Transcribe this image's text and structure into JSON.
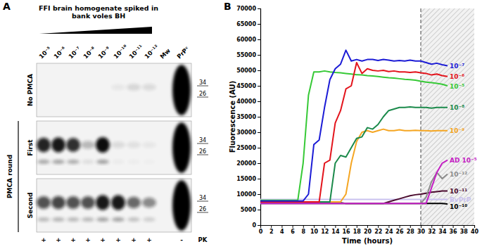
{
  "blot": {
    "panel": "A",
    "title_lines": [
      "FFI brain homogenate spiked in",
      "bank voles BH"
    ],
    "lanes": [
      "10⁻⁵",
      "10⁻⁶",
      "10⁻⁷",
      "10⁻⁸",
      "10⁻⁹",
      "10⁻¹⁰",
      "10⁻¹¹",
      "10⁻¹²",
      "Mw",
      "PrPᶜ"
    ],
    "rows": [
      "No PMCA",
      "First",
      "Second"
    ],
    "row_group": "PMCA round",
    "markers": [
      34,
      26
    ],
    "pk": [
      "+",
      "+",
      "+",
      "+",
      "+",
      "+",
      "+",
      "+",
      null,
      "-"
    ],
    "pk_label": "PK"
  },
  "chart_data": {
    "type": "line",
    "panel": "B",
    "xlabel": "Time (hours)",
    "ylabel": "Fluorescence (AU)",
    "xlim": [
      0,
      40
    ],
    "xticks": [
      0,
      2,
      4,
      6,
      8,
      10,
      12,
      14,
      16,
      18,
      20,
      22,
      24,
      26,
      28,
      30,
      32,
      34,
      36,
      38,
      40
    ],
    "ylim": [
      0,
      70000
    ],
    "yticks": [
      0,
      5000,
      10000,
      15000,
      20000,
      25000,
      30000,
      35000,
      40000,
      45000,
      50000,
      55000,
      60000,
      65000,
      70000
    ],
    "shaded_x": [
      30,
      40
    ],
    "x": [
      0,
      1,
      2,
      3,
      4,
      5,
      6,
      7,
      8,
      9,
      10,
      11,
      12,
      13,
      14,
      15,
      16,
      17,
      18,
      19,
      20,
      21,
      22,
      23,
      24,
      25,
      26,
      27,
      28,
      29,
      30,
      31,
      32,
      33,
      34,
      35
    ],
    "series": [
      {
        "name": "10⁻⁷",
        "color": "#1c1cd6",
        "values": [
          7800,
          7800,
          7800,
          7800,
          7800,
          7800,
          7800,
          7800,
          7800,
          10000,
          26000,
          27500,
          38000,
          47000,
          50500,
          52000,
          56500,
          53000,
          53500,
          53000,
          53500,
          53500,
          53200,
          53500,
          53300,
          53000,
          53200,
          53000,
          53300,
          53000,
          53000,
          52500,
          52000,
          52300,
          51800,
          51500
        ]
      },
      {
        "name": "10⁻⁶",
        "color": "#e3141c",
        "values": [
          7500,
          7500,
          7500,
          7500,
          7500,
          7500,
          7500,
          7500,
          7500,
          7500,
          7500,
          7500,
          20000,
          21000,
          33000,
          37000,
          44000,
          45000,
          52500,
          49000,
          50500,
          50000,
          49800,
          50000,
          49600,
          49800,
          49500,
          49500,
          49300,
          49500,
          49200,
          49000,
          48500,
          48800,
          48300,
          48000
        ]
      },
      {
        "name": "10⁻⁵",
        "color": "#36c936",
        "values": [
          8000,
          8000,
          8000,
          8000,
          8000,
          8000,
          8000,
          8000,
          20000,
          42000,
          49500,
          49500,
          49800,
          49500,
          49300,
          49200,
          49000,
          48800,
          48600,
          48500,
          48300,
          48200,
          48000,
          47800,
          47600,
          47500,
          47300,
          47100,
          47000,
          46800,
          46500,
          46200,
          46000,
          45800,
          45500,
          45000
        ]
      },
      {
        "name": "10⁻⁸",
        "color": "#1b8a4b",
        "values": [
          7500,
          7500,
          7500,
          7500,
          7500,
          7500,
          7500,
          7500,
          7500,
          7500,
          7500,
          7500,
          7500,
          7500,
          20000,
          22500,
          22000,
          25000,
          28000,
          28500,
          31500,
          31000,
          32500,
          35000,
          37000,
          37500,
          38000,
          38000,
          38200,
          38000,
          38000,
          38000,
          37800,
          38000,
          38000,
          38000
        ]
      },
      {
        "name": "10⁻⁹",
        "color": "#f5a623",
        "values": [
          7500,
          7500,
          7500,
          7500,
          7500,
          7500,
          7500,
          7500,
          7500,
          7500,
          7500,
          7500,
          7500,
          7500,
          7500,
          7500,
          10000,
          20000,
          27000,
          30000,
          30500,
          30000,
          30500,
          31000,
          30500,
          30500,
          30800,
          30500,
          30500,
          30600,
          30500,
          30500,
          30400,
          30500,
          30500,
          30500
        ]
      },
      {
        "name": "AD 10⁻⁵",
        "color": "#c41fc4",
        "values": [
          7000,
          7000,
          7000,
          7000,
          7000,
          7000,
          7000,
          7000,
          7000,
          7000,
          7000,
          7000,
          7000,
          7000,
          7000,
          7000,
          7000,
          7000,
          7000,
          7000,
          7000,
          7000,
          7000,
          7000,
          7000,
          7000,
          7000,
          7000,
          7000,
          7000,
          7000,
          7000,
          12000,
          17000,
          20000,
          21000
        ]
      },
      {
        "name": "10⁻¹²",
        "color": "#8c8c8c",
        "values": [
          7000,
          7000,
          7000,
          7000,
          7000,
          7000,
          7000,
          7000,
          7000,
          7000,
          7000,
          7000,
          7000,
          7000,
          7000,
          7000,
          7000,
          7000,
          7000,
          7000,
          7000,
          7000,
          7000,
          7000,
          7000,
          7000,
          7000,
          7000,
          7000,
          7000,
          7000,
          9000,
          14000,
          17000,
          15000,
          16500
        ]
      },
      {
        "name": "10⁻¹¹",
        "color": "#4b0b2e",
        "values": [
          7000,
          7000,
          7000,
          7000,
          7000,
          7000,
          7000,
          7000,
          7000,
          7000,
          7000,
          7000,
          7000,
          7000,
          7000,
          7000,
          7000,
          7000,
          7000,
          7000,
          7000,
          7000,
          7000,
          7000,
          7500,
          8000,
          8500,
          9000,
          9500,
          9800,
          10000,
          10300,
          10600,
          10800,
          11000,
          11000
        ]
      },
      {
        "name": "BvPrP",
        "color": "#c9c1ef",
        "values": [
          8300,
          8300,
          8300,
          8300,
          8300,
          8300,
          8300,
          8300,
          8300,
          8300,
          8300,
          8300,
          8300,
          8300,
          8300,
          8300,
          8300,
          8300,
          8300,
          8300,
          8300,
          8300,
          8300,
          8300,
          8300,
          8300,
          8300,
          8300,
          8300,
          8300,
          8300,
          8300,
          8300,
          8300,
          8300,
          8300
        ]
      },
      {
        "name": "10⁻¹⁰",
        "color": "#000000",
        "values": [
          7200,
          7200,
          7200,
          7200,
          7200,
          7200,
          7200,
          7200,
          7200,
          7200,
          7200,
          7200,
          7200,
          7200,
          7200,
          7200,
          7000,
          7000,
          7000,
          7000,
          7000,
          7000,
          7000,
          7000,
          7000,
          7000,
          7000,
          7000,
          7000,
          7000,
          7000,
          7000,
          7000,
          7000,
          7000,
          6800
        ]
      }
    ]
  }
}
